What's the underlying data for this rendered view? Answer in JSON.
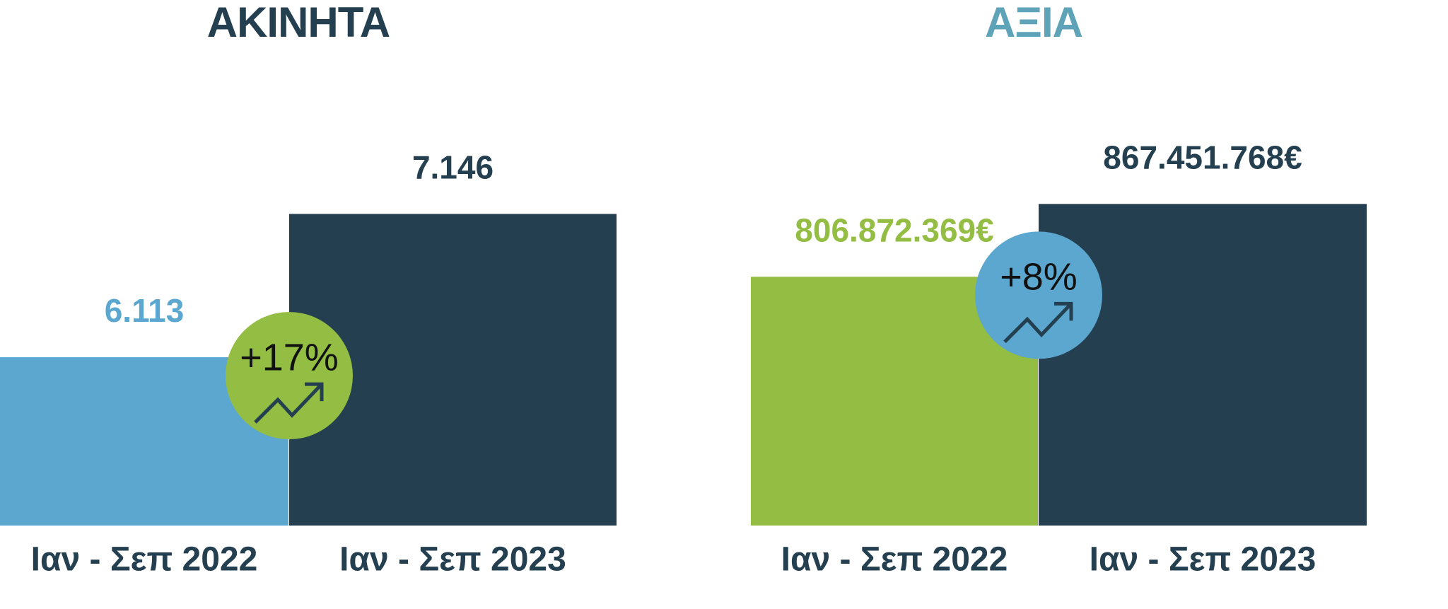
{
  "chart_data": [
    {
      "type": "bar",
      "title": "ΑΚΙΝΗΤΑ",
      "title_color": "#243f4f",
      "categories": [
        "Ιαν - Σεπ 2022",
        "Ιαν - Σεπ 2023"
      ],
      "values": [
        6113,
        7146
      ],
      "value_labels": [
        "6.113",
        "7.146"
      ],
      "colors": [
        "#5ba7cf",
        "#243f4f"
      ],
      "ylim": [
        4900,
        7500
      ],
      "annotation": "+17%",
      "annotation_color": "#93bd43"
    },
    {
      "type": "bar",
      "title": "ΑΞΙΑ",
      "title_color": "#5fa3b8",
      "categories": [
        "Ιαν - Σεπ 2022",
        "Ιαν - Σεπ 2023"
      ],
      "values": [
        806872369,
        867451768
      ],
      "value_labels": [
        "806.872.369€",
        "867.451.768€"
      ],
      "colors": [
        "#93bd43",
        "#243f4f"
      ],
      "ylim": [
        600000000,
        900000000
      ],
      "annotation": "+8%",
      "annotation_color": "#5ba7cf"
    }
  ]
}
